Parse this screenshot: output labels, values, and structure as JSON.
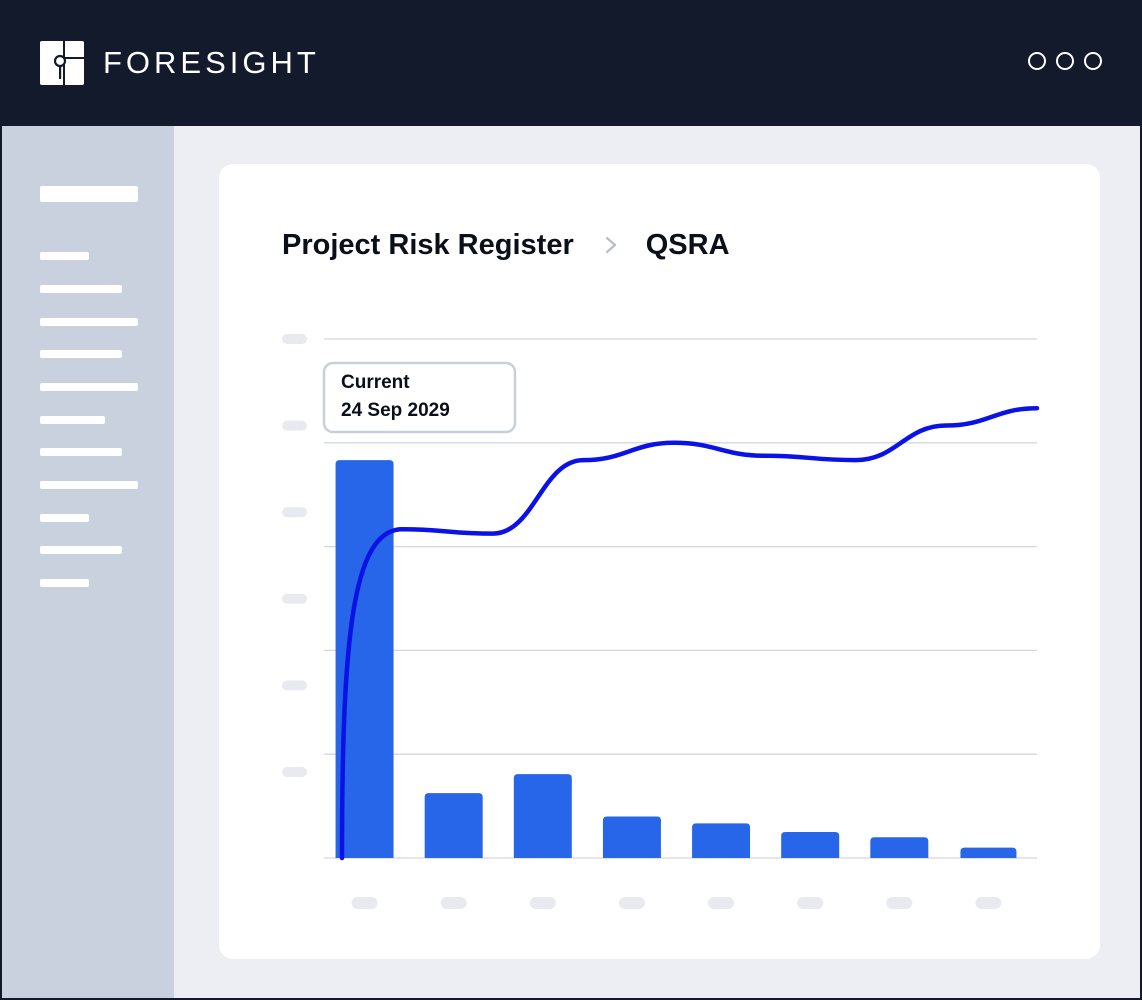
{
  "app": {
    "brand": "FORESIGHT",
    "window_controls": [
      "circle-icon",
      "circle-icon",
      "circle-icon"
    ]
  },
  "breadcrumb": {
    "items": [
      "Project Risk Register",
      "QSRA"
    ],
    "separator_icon": "chevron-right-icon"
  },
  "tooltip": {
    "title": "Current",
    "date": "24 Sep 2029"
  },
  "colors": {
    "topbar": "#121a2c",
    "sidebar": "#c9d0de",
    "bar": "#2766e8",
    "line": "#0a12e6",
    "gridline": "#d3d7e0",
    "placeholder": "#e8eaf0"
  },
  "chart_data": {
    "type": "bar",
    "ylim": [
      0,
      6
    ],
    "grid": true,
    "values": [
      4.6,
      0.75,
      0.97,
      0.48,
      0.4,
      0.3,
      0.24,
      0.12
    ],
    "cumulative_line": [
      0.0,
      3.8,
      3.75,
      4.6,
      4.8,
      4.65,
      4.6,
      5.0,
      5.2
    ],
    "legend": null
  }
}
